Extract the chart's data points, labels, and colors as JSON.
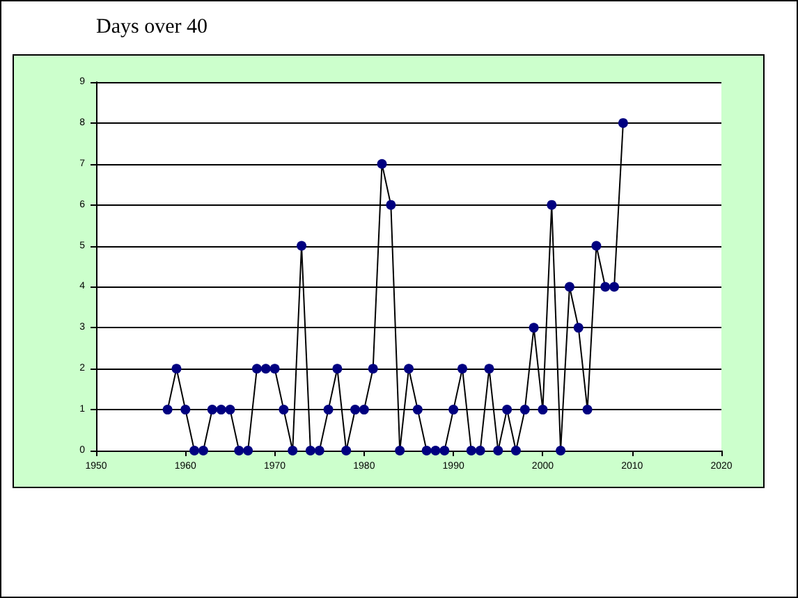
{
  "chart_data": {
    "type": "line",
    "title": "Days over 40",
    "x": [
      1958,
      1959,
      1960,
      1961,
      1962,
      1963,
      1964,
      1965,
      1966,
      1967,
      1968,
      1969,
      1970,
      1971,
      1972,
      1973,
      1974,
      1975,
      1976,
      1977,
      1978,
      1979,
      1980,
      1981,
      1982,
      1983,
      1984,
      1985,
      1986,
      1987,
      1988,
      1989,
      1990,
      1991,
      1992,
      1993,
      1994,
      1995,
      1996,
      1997,
      1998,
      1999,
      2000,
      2001,
      2002,
      2003,
      2004,
      2005,
      2006,
      2007,
      2008,
      2009
    ],
    "series": [
      {
        "color": "#000080",
        "values": [
          1,
          2,
          1,
          0,
          0,
          1,
          1,
          1,
          0,
          0,
          2,
          2,
          2,
          1,
          0,
          5,
          0,
          0,
          1,
          2,
          0,
          1,
          1,
          2,
          7,
          6,
          0,
          2,
          1,
          0,
          0,
          0,
          1,
          2,
          0,
          0,
          2,
          0,
          1,
          0,
          1,
          3,
          1,
          6,
          0,
          4,
          3,
          1,
          5,
          4,
          4,
          8
        ]
      }
    ],
    "xlim": [
      1950,
      2020
    ],
    "xticks": [
      1950,
      1960,
      1970,
      1980,
      1990,
      2000,
      2010,
      2020
    ],
    "ylim": [
      0,
      9
    ],
    "yticks": [
      0,
      1,
      2,
      3,
      4,
      5,
      6,
      7,
      8,
      9
    ],
    "grid": "y",
    "marker": "circle",
    "line_style": "solid"
  }
}
